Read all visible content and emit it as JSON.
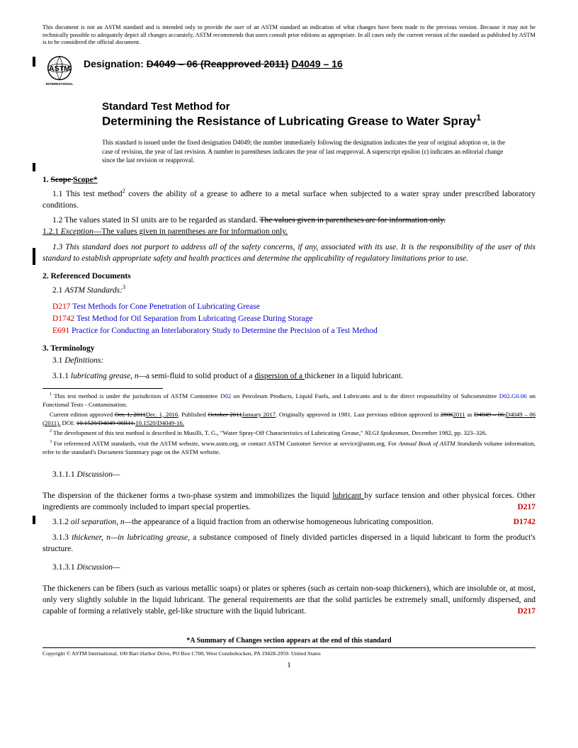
{
  "disclaimer": "This document is not an ASTM standard and is intended only to provide the user of an ASTM standard an indication of what changes have been made to the previous version. Because it may not be technically possible to adequately depict all changes accurately, ASTM recommends that users consult prior editions as appropriate. In all cases only the current version of the standard as published by ASTM is to be considered the official document.",
  "designation_label": "Designation:",
  "designation_old": "D4049 – 06 (Reapproved 2011)",
  "designation_new": "D4049 – 16",
  "logo_text": "ASTM",
  "logo_sub": "INTERNATIONAL",
  "title_pre": "Standard Test Method for",
  "title_main": "Determining the Resistance of Lubricating Grease to Water Spray",
  "title_sup": "1",
  "issue_note": "This standard is issued under the fixed designation D4049; the number immediately following the designation indicates the year of original adoption or, in the case of revision, the year of last revision. A number in parentheses indicates the year of last reapproval. A superscript epsilon (ε) indicates an editorial change since the last revision or reapproval.",
  "s1_head_num": "1.",
  "s1_head_old": "Scope ",
  "s1_head_new": "Scope*",
  "s1_1": "1.1  This test method",
  "s1_1_sup": "2",
  "s1_1_rest": " covers the ability of a grease to adhere to a metal surface when subjected to a water spray under prescribed laboratory conditions.",
  "s1_2a": "1.2  The values stated in SI units are to be regarded as standard. ",
  "s1_2_strike": "The values given in parentheses are for information only.",
  "s1_2_1": "1.2.1 ",
  "s1_2_1_exc": "Exception",
  "s1_2_1_rest": "—The values given in parentheses are for information only.",
  "s1_3": "1.3  This standard does not purport to address all of the safety concerns, if any, associated with its use. It is the responsibility of the user of this standard to establish appropriate safety and health practices and determine the applicability of regulatory limitations prior to use.",
  "s2_head": "2.  Referenced Documents",
  "s2_1": "2.1  ",
  "s2_1_ital": "ASTM Standards:",
  "s2_1_sup": "3",
  "refs": [
    {
      "code": "D217",
      "txt": "Test Methods for Cone Penetration of Lubricating Grease"
    },
    {
      "code": "D1742",
      "txt": "Test Method for Oil Separation from Lubricating Grease During Storage"
    },
    {
      "code": "E691",
      "txt": "Practice for Conducting an Interlaboratory Study to Determine the Precision of a Test Method"
    }
  ],
  "s3_head": "3.  Terminology",
  "s3_1": "3.1  ",
  "s3_1_ital": "Definitions:",
  "s3_1_1a": "3.1.1 ",
  "s3_1_1_term": "lubricating grease, n—",
  "s3_1_1b": "a semi-fluid to solid product of a ",
  "s3_1_1_u": "dispersion of a ",
  "s3_1_1c": "thickener in a liquid lubricant.",
  "s3_1_1_1": "3.1.1.1 ",
  "disc": "Discussion—",
  "disp_a": "The dispersion of the thickener forms a two-phase system and immobilizes the liquid ",
  "disp_u": "lubricant ",
  "disp_b": "by surface tension and other physical forces. Other ingredients are commonly included to impart special properties.",
  "disp_ref": "D217",
  "s3_1_2a": "3.1.2 ",
  "s3_1_2_term": "oil separation, n—",
  "s3_1_2b": "the appearance of a liquid fraction from an otherwise homogeneous lubricating composition.",
  "s3_1_2_ref": "D1742",
  "s3_1_3a": "3.1.3 ",
  "s3_1_3_term": "thickener, n—in lubricating grease",
  "s3_1_3b": ", a substance composed of finely divided particles dispersed in a liquid lubricant to form the product's structure.",
  "s3_1_3_1": "3.1.3.1 ",
  "thick_disc": "The thickeners can be fibers (such as various metallic soaps) or plates or spheres (such as certain non-soap thickeners), which are insoluble or, at most, only very slightly soluble in the liquid lubricant. The general requirements are that the solid particles be extremely small, uniformly dispersed, and capable of forming a relatively stable, gel-like structure with the liquid lubricant.",
  "thick_ref": "D217",
  "fn1a": " This test method is under the jurisdiction of ASTM Committee ",
  "fn1_l1": "D02",
  "fn1b": " on Petroleum Products, Liquid Fuels, and Lubricants and is the direct responsibility of Subcommittee ",
  "fn1_l2": "D02.G0.06",
  "fn1c": " on Functional Tests - Contamination.",
  "fn1_line2a": "Current edition approved ",
  "fn1_line2_s1": "Oct. 1, 2011",
  "fn1_line2_u1": "Dec. 1, 2016",
  "fn1_line2b": ". Published ",
  "fn1_line2_s2": "October 2011",
  "fn1_line2_u2": "January 2017",
  "fn1_line2c": ". Originally approved in 1981. Last previous edition approved in ",
  "fn1_line2_s3": "2006",
  "fn1_line2_u3": "2011",
  "fn1_line2d": " as ",
  "fn1_line2_s4": "D4049 – 06.",
  "fn1_line2_u4": "D4049 – 06 (2011).",
  "fn1_line2e": " DOI: ",
  "fn1_line2_s5": "10.1520/D4049-06R11.",
  "fn1_line2_u5": "10.1520/D4049-16.",
  "fn2": " The development of this test method is described in Musilli, T. G., \"Water Spray-Off Characteristics of Lubricating Grease,\" ",
  "fn2_ital": "NLGI Spokesman",
  "fn2b": ", December 1982, pp. 323–326.",
  "fn3a": " For referenced ASTM standards, visit the ASTM website, www.astm.org, or contact ASTM Customer Service at service@astm.org. For ",
  "fn3_ital": "Annual Book of ASTM Standards",
  "fn3b": " volume information, refer to the standard's Document Summary page on the ASTM website.",
  "summary": "*A Summary of Changes section appears at the end of this standard",
  "copyright": "Copyright © ASTM International, 100 Barr Harbor Drive, PO Box C700, West Conshohocken, PA 19428-2959. United States",
  "pageno": "1"
}
